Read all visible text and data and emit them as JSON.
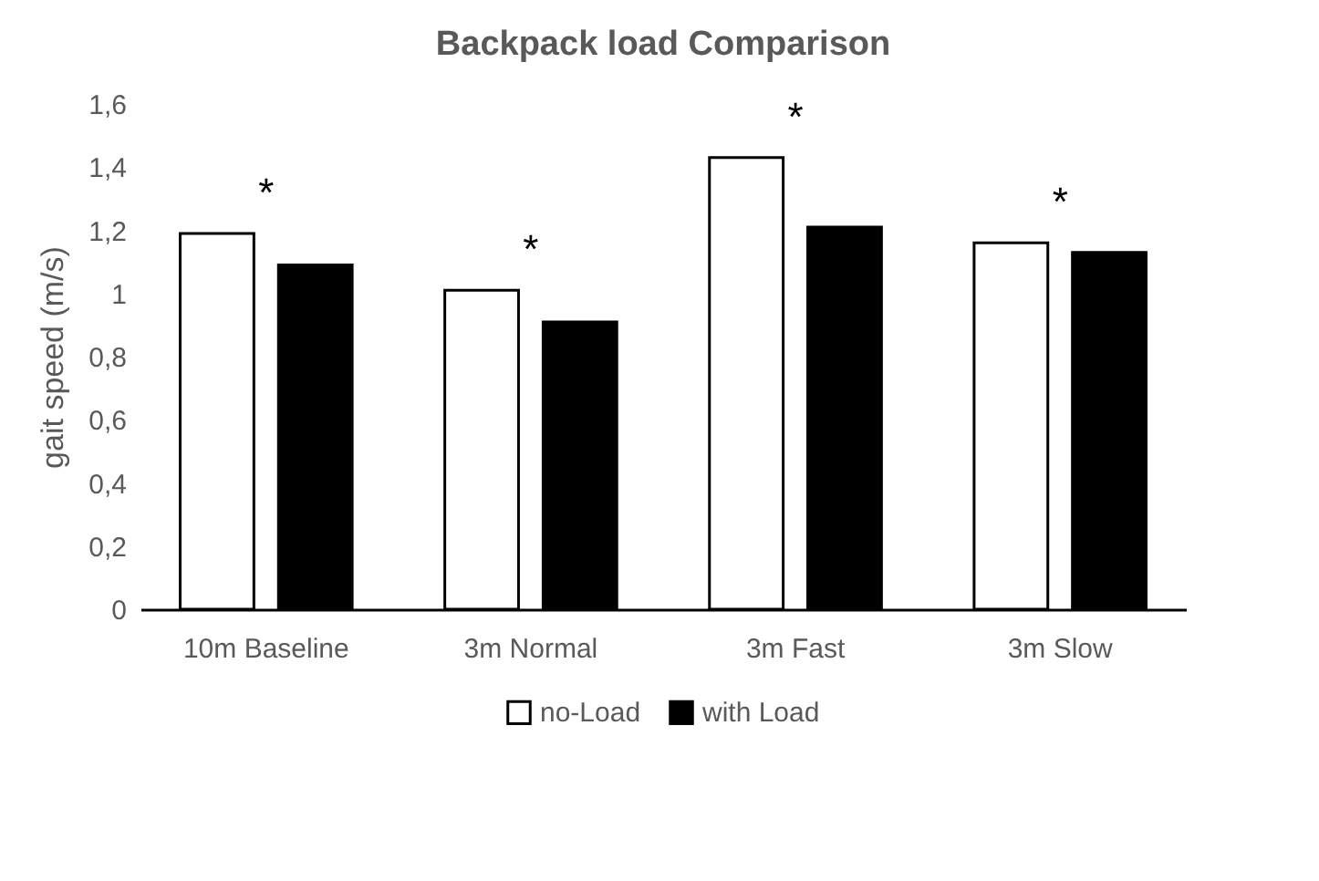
{
  "chart_data": {
    "type": "bar",
    "title": "Backpack load Comparison",
    "ylabel": "gait speed (m/s)",
    "categories": [
      "10m Baseline",
      "3m Normal",
      "3m Fast",
      "3m Slow"
    ],
    "series": [
      {
        "name": "no-Load",
        "color": "#ffffff",
        "values": [
          1.19,
          1.01,
          1.43,
          1.16
        ]
      },
      {
        "name": "with Load",
        "color": "#000000",
        "values": [
          1.09,
          0.91,
          1.21,
          1.13
        ]
      }
    ],
    "ylim": [
      0,
      1.6
    ],
    "yticks": [
      {
        "value": 0,
        "label": "0"
      },
      {
        "value": 0.2,
        "label": "0,2"
      },
      {
        "value": 0.4,
        "label": "0,4"
      },
      {
        "value": 0.6,
        "label": "0,6"
      },
      {
        "value": 0.8,
        "label": "0,8"
      },
      {
        "value": 1,
        "label": "1"
      },
      {
        "value": 1.2,
        "label": "1,2"
      },
      {
        "value": 1.4,
        "label": "1,4"
      },
      {
        "value": 1.6,
        "label": "1,6"
      }
    ],
    "annotations": [
      "*",
      "*",
      "*",
      "*"
    ],
    "grid": false,
    "legend": "bottom"
  }
}
